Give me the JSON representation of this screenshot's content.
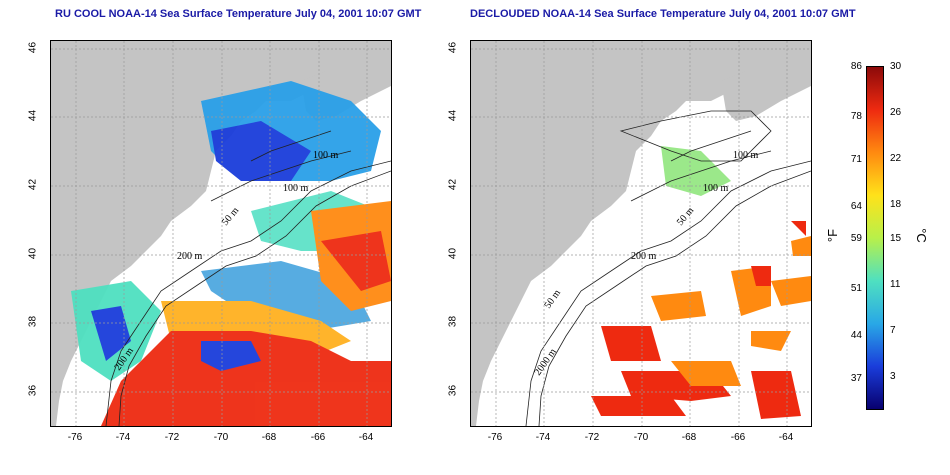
{
  "left_title": "RU COOL NOAA-14 Sea Surface Temperature July 04, 2001 10:07 GMT",
  "right_title": "DECLOUDED NOAA-14 Sea Surface Temperature July 04, 2001 10:07 GMT",
  "lat_ticks": [
    "46",
    "44",
    "42",
    "40",
    "38",
    "36"
  ],
  "lon_ticks": [
    "-76",
    "-74",
    "-72",
    "-70",
    "-68",
    "-66",
    "-64"
  ],
  "left_depth_labels": [
    "100 m",
    "100 m",
    "50 m",
    "200 m",
    "200 m"
  ],
  "right_depth_labels": [
    "100 m",
    "100 m",
    "50 m",
    "200 m",
    "50 m",
    "2000 m"
  ],
  "colorbar": {
    "f_label": "°F",
    "c_label": "°C",
    "f_ticks": [
      "86",
      "78",
      "71",
      "64",
      "59",
      "51",
      "44",
      "37"
    ],
    "c_ticks": [
      "30",
      "26",
      "22",
      "18",
      "15",
      "11",
      "7",
      "3"
    ],
    "colors": [
      "#08006e",
      "#1a3ddb",
      "#29a8e6",
      "#4fe0c0",
      "#b8f04a",
      "#ffe21a",
      "#ff8a10",
      "#ee2a10",
      "#8c0a0a"
    ]
  },
  "colors": {
    "land": "#c4c4c4",
    "grid": "#9a9a9a",
    "title": "#1a1aa6"
  }
}
